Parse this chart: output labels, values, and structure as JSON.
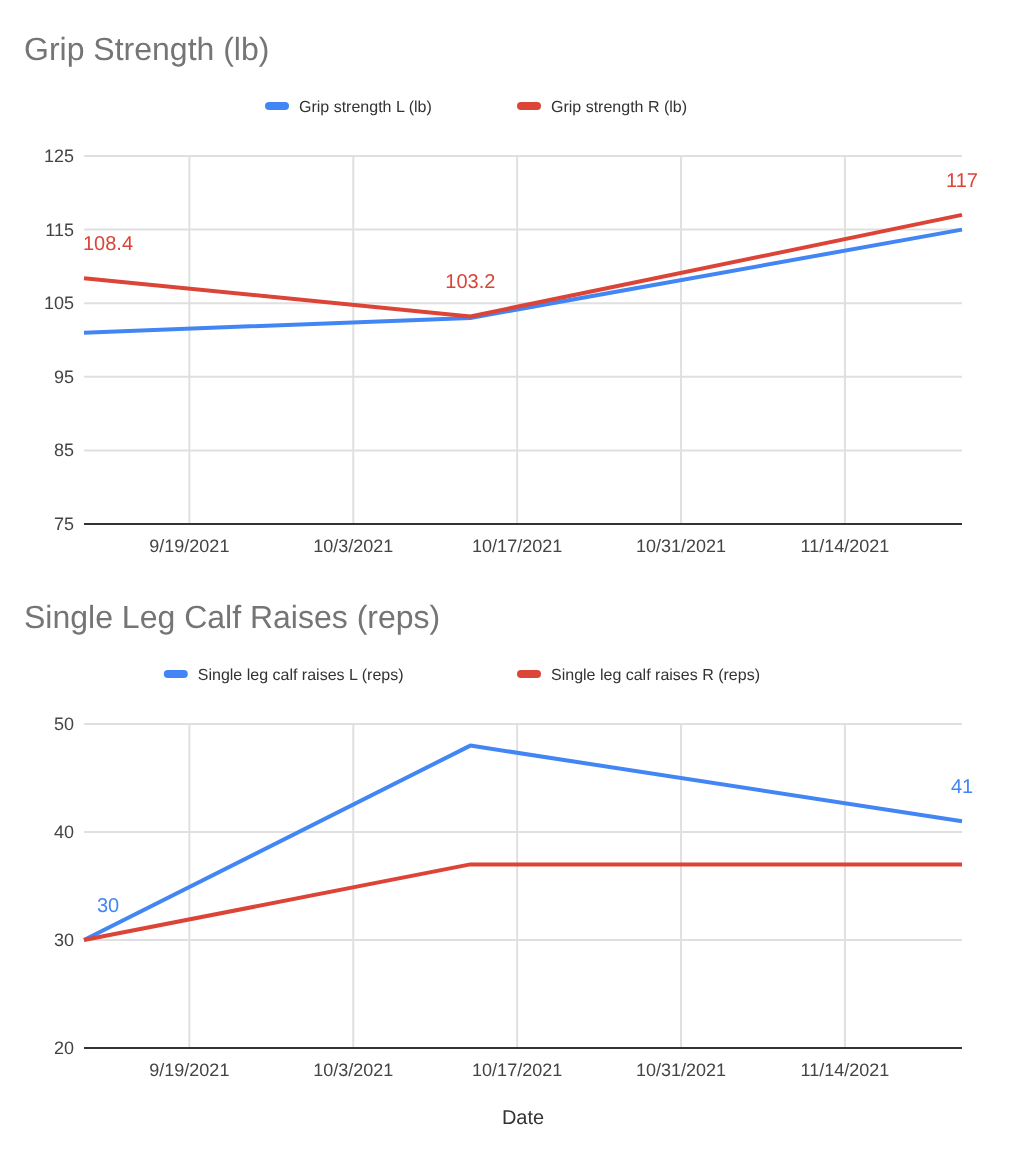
{
  "chart_data": [
    {
      "type": "line",
      "title": "Grip Strength (lb)",
      "x": [
        "2021-09-10",
        "2021-10-13",
        "2021-11-24"
      ],
      "series": [
        {
          "name": "Grip strength L (lb)",
          "color": "#4285f4",
          "values": [
            101,
            103,
            115
          ]
        },
        {
          "name": "Grip strength R (lb)",
          "color": "#db4437",
          "values": [
            108.4,
            103.2,
            117
          ],
          "value_labels": [
            "108.4",
            "103.2",
            "117"
          ]
        }
      ],
      "xlim": [
        "2021-09-10",
        "2021-11-24"
      ],
      "xticks": [
        {
          "value": "2021-09-19",
          "label": "9/19/2021"
        },
        {
          "value": "2021-10-03",
          "label": "10/3/2021"
        },
        {
          "value": "2021-10-17",
          "label": "10/17/2021"
        },
        {
          "value": "2021-10-31",
          "label": "10/31/2021"
        },
        {
          "value": "2021-11-14",
          "label": "11/14/2021"
        }
      ],
      "ylim": [
        75,
        125
      ],
      "yticks": [
        75,
        85,
        95,
        105,
        115,
        125
      ],
      "grid": true,
      "legend": "top",
      "marker": "none"
    },
    {
      "type": "line",
      "title": "Single Leg Calf Raises (reps)",
      "xlabel": "Date",
      "x": [
        "2021-09-10",
        "2021-10-13",
        "2021-11-24"
      ],
      "series": [
        {
          "name": "Single leg calf raises L (reps)",
          "color": "#4285f4",
          "values": [
            30,
            48,
            41
          ],
          "value_labels": [
            "30",
            null,
            "41"
          ]
        },
        {
          "name": "Single leg calf raises R (reps)",
          "color": "#db4437",
          "values": [
            30,
            37,
            37
          ]
        }
      ],
      "xlim": [
        "2021-09-10",
        "2021-11-24"
      ],
      "xticks": [
        {
          "value": "2021-09-19",
          "label": "9/19/2021"
        },
        {
          "value": "2021-10-03",
          "label": "10/3/2021"
        },
        {
          "value": "2021-10-17",
          "label": "10/17/2021"
        },
        {
          "value": "2021-10-31",
          "label": "10/31/2021"
        },
        {
          "value": "2021-11-14",
          "label": "11/14/2021"
        }
      ],
      "ylim": [
        20,
        50
      ],
      "yticks": [
        20,
        30,
        40,
        50
      ],
      "grid": true,
      "legend": "top",
      "marker": "none"
    }
  ]
}
